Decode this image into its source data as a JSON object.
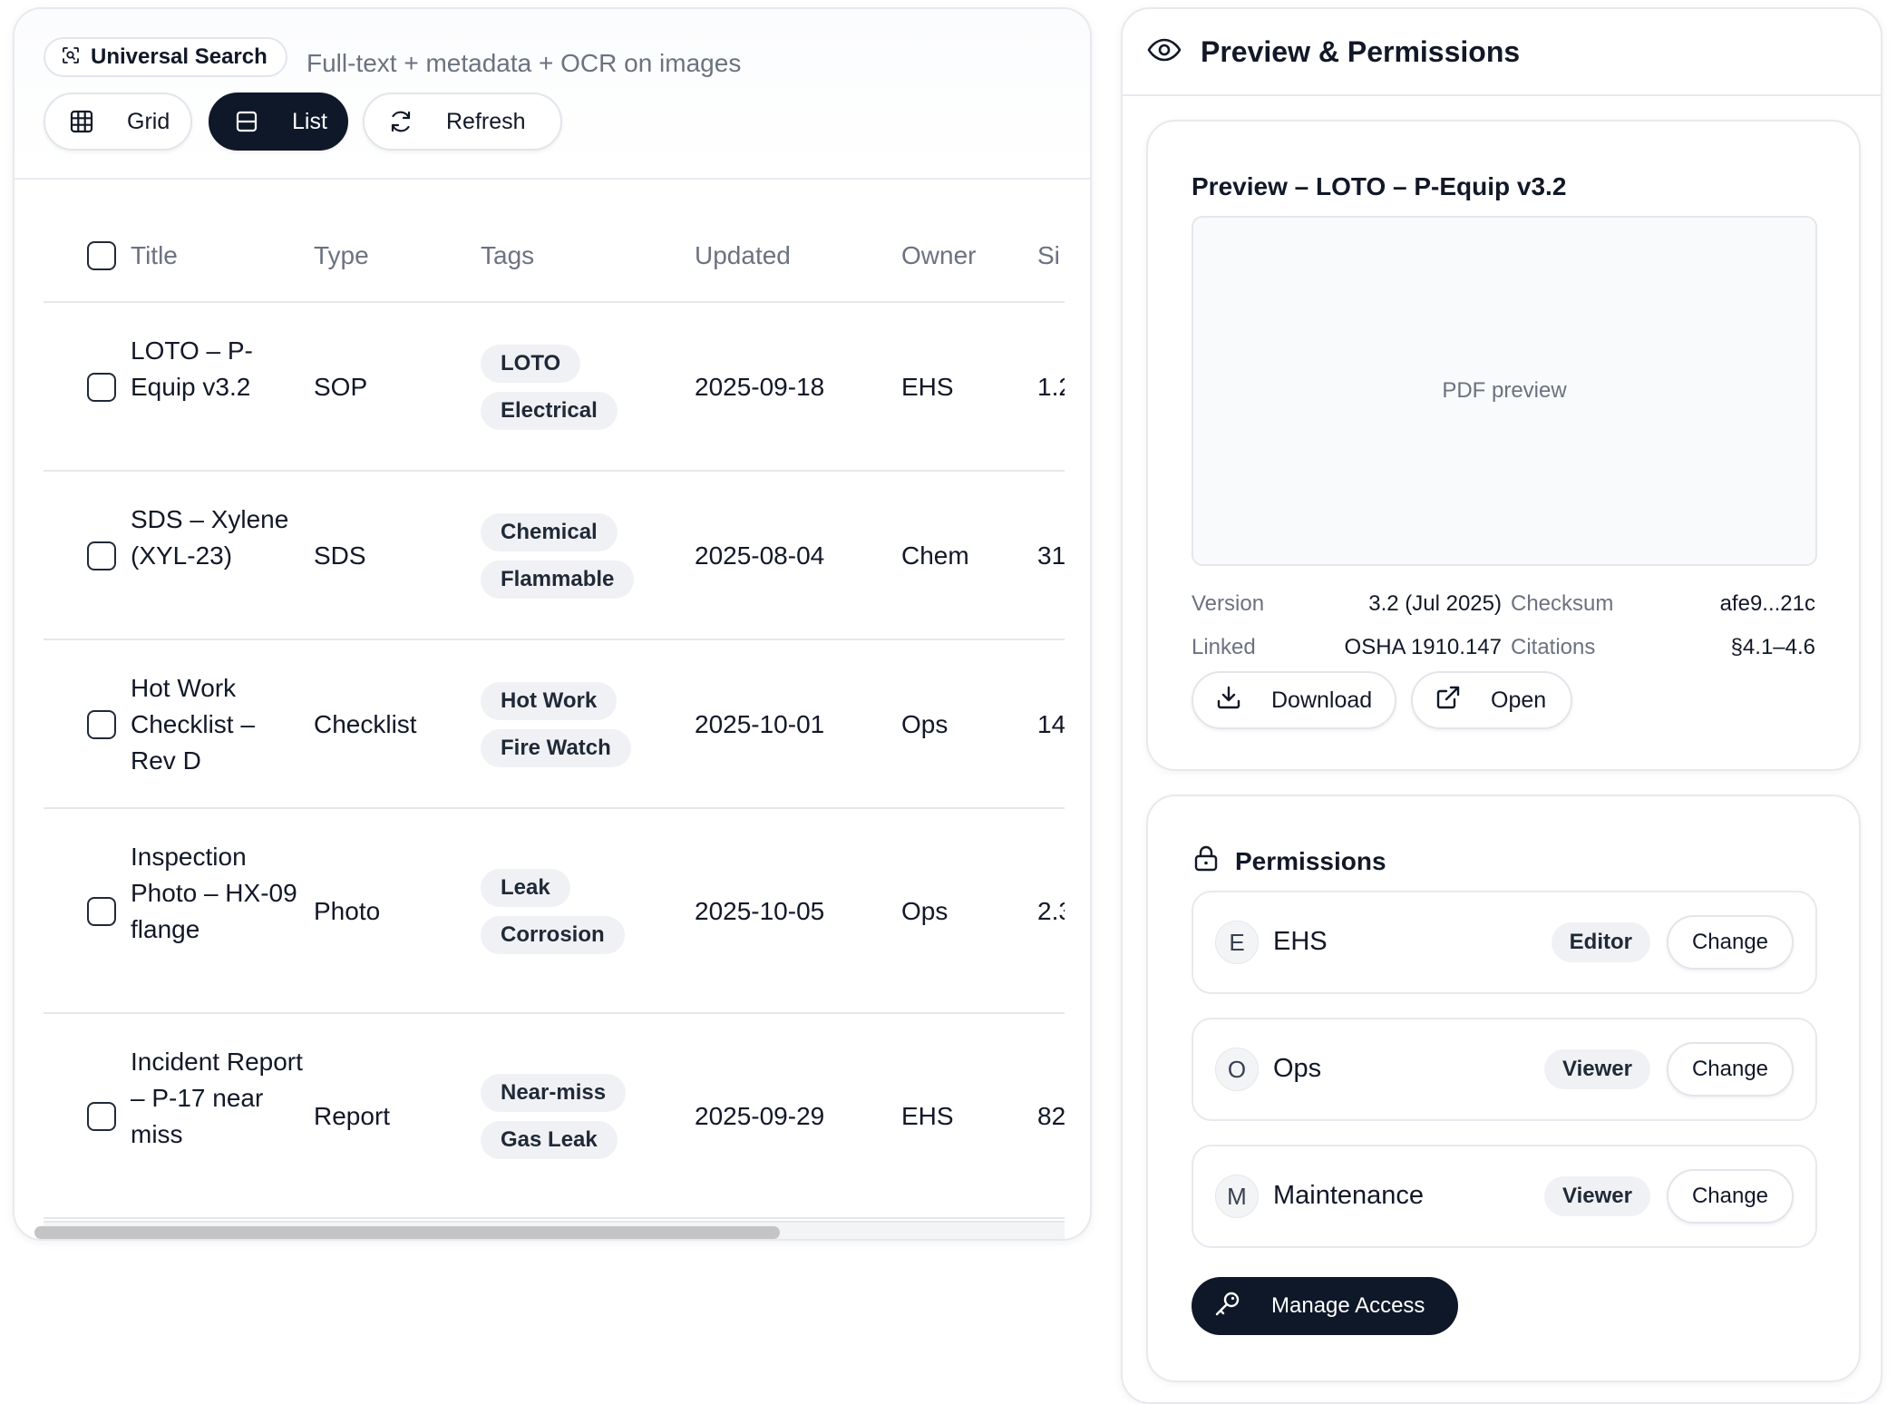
{
  "search": {
    "chip_label": "Universal Search",
    "hint": "Full-text + metadata + OCR on images"
  },
  "view": {
    "grid_label": "Grid",
    "list_label": "List",
    "refresh_label": "Refresh",
    "active": "List"
  },
  "table": {
    "columns": [
      "Title",
      "Type",
      "Tags",
      "Updated",
      "Owner",
      "Si"
    ],
    "rows": [
      {
        "title": "LOTO – P-Equip v3.2",
        "type": "SOP",
        "tags": [
          "LOTO",
          "Electrical"
        ],
        "updated": "2025-09-18",
        "owner": "EHS",
        "size": "1.2"
      },
      {
        "title": "SDS – Xylene (XYL-23)",
        "type": "SDS",
        "tags": [
          "Chemical",
          "Flammable"
        ],
        "updated": "2025-08-04",
        "owner": "Chem",
        "size": "31"
      },
      {
        "title": "Hot Work Checklist – Rev D",
        "type": "Checklist",
        "tags": [
          "Hot Work",
          "Fire Watch"
        ],
        "updated": "2025-10-01",
        "owner": "Ops",
        "size": "14"
      },
      {
        "title": "Inspection Photo – HX-09 flange",
        "type": "Photo",
        "tags": [
          "Leak",
          "Corrosion"
        ],
        "updated": "2025-10-05",
        "owner": "Ops",
        "size": "2.3"
      },
      {
        "title": "Incident Report – P-17 near miss",
        "type": "Report",
        "tags": [
          "Near-miss",
          "Gas Leak"
        ],
        "updated": "2025-09-29",
        "owner": "EHS",
        "size": "82"
      }
    ]
  },
  "right_panel": {
    "title": "Preview & Permissions",
    "preview": {
      "title": "Preview – LOTO – P-Equip v3.2",
      "placeholder": "PDF preview",
      "version_label": "Version",
      "version_value": "3.2 (Jul 2025)",
      "checksum_label": "Checksum",
      "checksum_value": "afe9...21c",
      "linked_label": "Linked",
      "linked_value": "OSHA 1910.147",
      "citations_label": "Citations",
      "citations_value": "§4.1–4.6",
      "download_label": "Download",
      "open_label": "Open"
    },
    "permissions": {
      "title": "Permissions",
      "entries": [
        {
          "initial": "E",
          "name": "EHS",
          "role": "Editor",
          "change_label": "Change"
        },
        {
          "initial": "O",
          "name": "Ops",
          "role": "Viewer",
          "change_label": "Change"
        },
        {
          "initial": "M",
          "name": "Maintenance",
          "role": "Viewer",
          "change_label": "Change"
        }
      ],
      "manage_label": "Manage Access"
    }
  },
  "colors": {
    "accent_dark": "#0f1829",
    "muted_text": "#6b7280",
    "border": "#e7e9ee",
    "tag_bg": "#f0f1f4"
  }
}
